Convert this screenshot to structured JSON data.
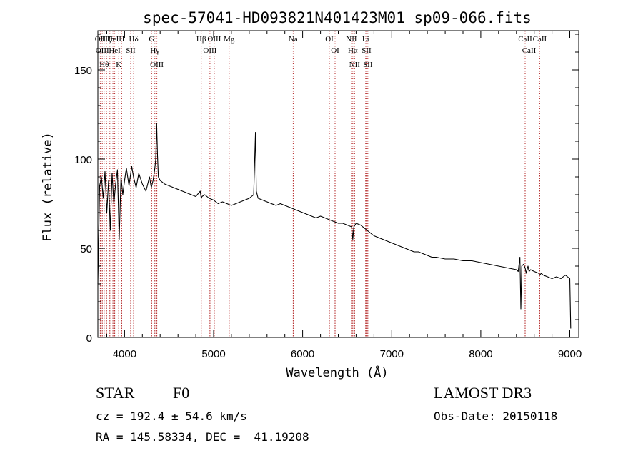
{
  "chart_data": {
    "type": "line",
    "title": "spec-57041-HD093821N401423M01_sp09-066.fits",
    "xlabel": "Wavelength (Å)",
    "ylabel": "Flux (relative)",
    "xlim": [
      3700,
      9100
    ],
    "ylim": [
      0,
      172
    ],
    "x_ticks": [
      4000,
      5000,
      6000,
      7000,
      8000,
      9000
    ],
    "x_tick_labels": [
      "4000",
      "5000",
      "6000",
      "7000",
      "8000",
      "9000"
    ],
    "y_ticks": [
      0,
      50,
      100,
      150
    ],
    "y_tick_labels": [
      "0",
      "50",
      "100",
      "150"
    ],
    "grid": false,
    "series": [
      {
        "color": "#000000",
        "x": [
          3700,
          3720,
          3740,
          3760,
          3780,
          3800,
          3820,
          3840,
          3860,
          3880,
          3900,
          3920,
          3940,
          3960,
          3980,
          4000,
          4020,
          4050,
          4080,
          4100,
          4130,
          4160,
          4200,
          4240,
          4280,
          4300,
          4320,
          4340,
          4350,
          4360,
          4370,
          4380,
          4400,
          4450,
          4500,
          4550,
          4600,
          4650,
          4700,
          4750,
          4800,
          4850,
          4861,
          4870,
          4900,
          4950,
          5000,
          5050,
          5100,
          5150,
          5200,
          5250,
          5300,
          5350,
          5400,
          5450,
          5470,
          5480,
          5500,
          5550,
          5600,
          5650,
          5700,
          5750,
          5800,
          5850,
          5900,
          5950,
          6000,
          6050,
          6100,
          6150,
          6200,
          6250,
          6300,
          6350,
          6400,
          6450,
          6500,
          6550,
          6563,
          6575,
          6600,
          6650,
          6700,
          6750,
          6800,
          6850,
          6900,
          6950,
          7000,
          7050,
          7100,
          7150,
          7200,
          7250,
          7300,
          7350,
          7400,
          7450,
          7500,
          7600,
          7700,
          7800,
          7900,
          8000,
          8100,
          8200,
          8300,
          8400,
          8420,
          8440,
          8450,
          8460,
          8480,
          8498,
          8510,
          8530,
          8542,
          8560,
          8600,
          8650,
          8662,
          8680,
          8700,
          8750,
          8800,
          8850,
          8900,
          8950,
          9000,
          9010
        ],
        "y": [
          30,
          85,
          90,
          78,
          93,
          70,
          88,
          60,
          92,
          75,
          86,
          94,
          55,
          90,
          80,
          88,
          95,
          85,
          96,
          90,
          84,
          92,
          86,
          82,
          90,
          84,
          88,
          95,
          100,
          120,
          102,
          90,
          88,
          86,
          85,
          84,
          83,
          82,
          81,
          80,
          79,
          82,
          78,
          79,
          80,
          78,
          77,
          75,
          76,
          75,
          74,
          75,
          76,
          77,
          78,
          80,
          115,
          82,
          78,
          77,
          76,
          75,
          74,
          75,
          74,
          73,
          72,
          71,
          70,
          69,
          68,
          67,
          68,
          67,
          66,
          65,
          64,
          64,
          63,
          62,
          55,
          62,
          64,
          63,
          61,
          59,
          57,
          56,
          55,
          54,
          53,
          52,
          51,
          50,
          49,
          48,
          48,
          47,
          46,
          45,
          45,
          44,
          44,
          43,
          43,
          42,
          41,
          40,
          39,
          38,
          37,
          45,
          16,
          40,
          41,
          39,
          36,
          40,
          37,
          38,
          37,
          36,
          35,
          36,
          35,
          34,
          33,
          34,
          33,
          35,
          33,
          5
        ]
      }
    ],
    "line_markers": [
      {
        "wavelength": 3727,
        "label": "OII"
      },
      {
        "wavelength": 3750,
        "label": "OIII"
      },
      {
        "wavelength": 3771,
        "label": "Hθ"
      },
      {
        "wavelength": 3798,
        "label": "Hζ"
      },
      {
        "wavelength": 3835,
        "label": "Hη"
      },
      {
        "wavelength": 3869,
        "label": "HeI"
      },
      {
        "wavelength": 3889,
        "label": "HeI"
      },
      {
        "wavelength": 3934,
        "label": "K"
      },
      {
        "wavelength": 3968,
        "label": "H"
      },
      {
        "wavelength": 4069,
        "label": "SII"
      },
      {
        "wavelength": 4102,
        "label": "Hδ"
      },
      {
        "wavelength": 4304,
        "label": "G"
      },
      {
        "wavelength": 4340,
        "label": "Hγ"
      },
      {
        "wavelength": 4363,
        "label": "OIII"
      },
      {
        "wavelength": 4861,
        "label": "Hβ"
      },
      {
        "wavelength": 4959,
        "label": "OIII"
      },
      {
        "wavelength": 5007,
        "label": "OIII"
      },
      {
        "wavelength": 5175,
        "label": "Mg"
      },
      {
        "wavelength": 5894,
        "label": "Na"
      },
      {
        "wavelength": 6300,
        "label": "OI"
      },
      {
        "wavelength": 6364,
        "label": "OI"
      },
      {
        "wavelength": 6548,
        "label": "NII"
      },
      {
        "wavelength": 6563,
        "label": "Hα"
      },
      {
        "wavelength": 6583,
        "label": "NII"
      },
      {
        "wavelength": 6707,
        "label": "Li"
      },
      {
        "wavelength": 6716,
        "label": "SII"
      },
      {
        "wavelength": 6731,
        "label": "SII"
      },
      {
        "wavelength": 8498,
        "label": "CaII"
      },
      {
        "wavelength": 8542,
        "label": "CaII"
      },
      {
        "wavelength": 8662,
        "label": "CaII"
      }
    ],
    "marker_color": "#b22222"
  },
  "info": {
    "class_label": "STAR",
    "subclass_label": "F0",
    "survey_label": "LAMOST DR3",
    "redshift_text": "cz = 192.4 ± 54.6 km/s",
    "obs_date_text": "Obs-Date: 20150118",
    "coords_text": "RA = 145.58334, DEC =  41.19208"
  }
}
